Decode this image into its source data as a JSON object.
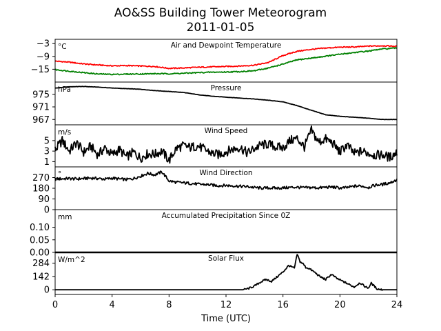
{
  "figure": {
    "title_line1": "AO&SS Building Tower Meteorogram",
    "title_line2": "2011-01-05",
    "xlabel": "Time (UTC)"
  },
  "chart_data": [
    {
      "type": "line",
      "title": "Air and Dewpoint Temperature",
      "unit": "°C",
      "ylim": [
        -21,
        -1
      ],
      "yticks": [
        -3,
        -9,
        -15
      ],
      "xlim": [
        0,
        24
      ],
      "series": [
        {
          "color": "#ff0000",
          "x": [
            0,
            1,
            2,
            3,
            4,
            5,
            6,
            7,
            8,
            9,
            10,
            11,
            12,
            13,
            14,
            15,
            16,
            17,
            18,
            19,
            20,
            21,
            22,
            23,
            24
          ],
          "y": [
            -11.2,
            -11.7,
            -12.5,
            -13.0,
            -13.4,
            -13.3,
            -13.5,
            -13.7,
            -14.6,
            -14.4,
            -14.1,
            -13.9,
            -13.7,
            -13.5,
            -13.1,
            -11.8,
            -8.6,
            -6.6,
            -5.7,
            -5.1,
            -4.7,
            -4.6,
            -4.2,
            -4.0,
            -4.3
          ]
        },
        {
          "color": "#008000",
          "x": [
            0,
            1,
            2,
            3,
            4,
            5,
            6,
            7,
            8,
            9,
            10,
            11,
            12,
            13,
            14,
            15,
            16,
            17,
            18,
            19,
            20,
            21,
            22,
            23,
            24
          ],
          "y": [
            -15.2,
            -15.9,
            -16.6,
            -17.2,
            -17.4,
            -17.3,
            -17.2,
            -17.1,
            -17.1,
            -16.9,
            -16.6,
            -16.4,
            -16.3,
            -16.1,
            -15.7,
            -14.4,
            -12.6,
            -10.6,
            -9.8,
            -8.9,
            -8.0,
            -7.2,
            -6.5,
            -5.5,
            -5.1
          ]
        }
      ]
    },
    {
      "type": "line",
      "title": "Pressure",
      "unit": "hPa",
      "ylim": [
        965.3,
        978.9
      ],
      "yticks": [
        975,
        971,
        967
      ],
      "xlim": [
        0,
        24
      ],
      "series": [
        {
          "color": "#000000",
          "x": [
            0,
            1,
            2,
            3,
            4,
            5,
            6,
            7,
            8,
            9,
            10,
            11,
            12,
            13,
            14,
            15,
            16,
            17,
            18,
            19,
            20,
            21,
            22,
            23,
            24
          ],
          "y": [
            977.0,
            977.4,
            977.5,
            977.3,
            977.0,
            976.8,
            976.6,
            976.2,
            975.9,
            975.6,
            974.9,
            974.4,
            974.1,
            973.8,
            973.5,
            973.1,
            972.6,
            971.4,
            969.9,
            968.5,
            968.0,
            967.7,
            967.4,
            967.0,
            967.0
          ]
        }
      ]
    },
    {
      "type": "line",
      "title": "Wind Speed",
      "unit": "m/s",
      "ylim": [
        0,
        8
      ],
      "yticks": [
        5,
        3,
        1
      ],
      "xlim": [
        0,
        24
      ],
      "series": [
        {
          "color": "#000000",
          "x": [
            0,
            0.5,
            1,
            1.5,
            2,
            2.5,
            3,
            3.5,
            4,
            4.5,
            5,
            5.5,
            6,
            6.5,
            7,
            7.5,
            8,
            8.5,
            9,
            9.5,
            10,
            10.5,
            11,
            11.5,
            12,
            12.5,
            13,
            13.5,
            14,
            14.5,
            15,
            15.5,
            16,
            16.5,
            17,
            17.5,
            18,
            18.5,
            19,
            19.5,
            20,
            20.5,
            21,
            21.5,
            22,
            22.5,
            23,
            23.5,
            24
          ],
          "y": [
            3.2,
            5.0,
            3.0,
            4.6,
            2.8,
            3.9,
            2.3,
            3.6,
            2.3,
            3.3,
            1.9,
            2.8,
            1.7,
            2.5,
            2.4,
            3.0,
            1.2,
            3.5,
            4.0,
            3.7,
            4.0,
            3.3,
            2.6,
            2.3,
            2.9,
            3.4,
            3.7,
            2.6,
            3.5,
            4.2,
            4.3,
            3.8,
            3.6,
            5.0,
            5.4,
            3.8,
            6.9,
            4.7,
            5.3,
            4.5,
            2.8,
            4.2,
            2.5,
            3.0,
            2.6,
            2.2,
            2.3,
            1.8,
            2.8
          ]
        }
      ]
    },
    {
      "type": "line",
      "title": "Wind Direction",
      "unit": "°",
      "ylim": [
        0,
        360
      ],
      "yticks": [
        270,
        180,
        90,
        0
      ],
      "xlim": [
        0,
        24
      ],
      "series": [
        {
          "color": "#000000",
          "x": [
            0,
            0.5,
            1,
            1.5,
            2,
            2.5,
            3,
            3.5,
            4,
            4.5,
            5,
            5.5,
            6,
            6.5,
            7,
            7.5,
            8,
            8.5,
            9,
            9.5,
            10,
            10.5,
            11,
            11.5,
            12,
            12.5,
            13,
            13.5,
            14,
            14.5,
            15,
            15.5,
            16,
            16.5,
            17,
            17.5,
            18,
            18.5,
            19,
            19.5,
            20,
            20.5,
            21,
            21.5,
            22,
            22.5,
            23,
            23.5,
            24
          ],
          "y": [
            258,
            260,
            262,
            258,
            262,
            266,
            262,
            257,
            265,
            258,
            253,
            262,
            282,
            305,
            293,
            318,
            242,
            230,
            226,
            221,
            214,
            212,
            207,
            202,
            204,
            201,
            196,
            194,
            186,
            181,
            183,
            181,
            183,
            187,
            189,
            184,
            186,
            183,
            189,
            190,
            182,
            185,
            197,
            199,
            187,
            207,
            212,
            226,
            251
          ]
        }
      ]
    },
    {
      "type": "line",
      "title": "Accumulated Precipitation Since 0Z",
      "unit": "mm",
      "ylim": [
        0,
        0.17
      ],
      "yticks": [
        0.1,
        0.05,
        0.0
      ],
      "xlim": [
        0,
        24
      ],
      "series": [
        {
          "color": "#000000",
          "x": [
            0,
            24
          ],
          "y": [
            0,
            0
          ]
        }
      ]
    },
    {
      "type": "line",
      "title": "Solar Flux",
      "unit": "W/m^2",
      "ylim": [
        -50,
        400
      ],
      "yticks": [
        284,
        142,
        0
      ],
      "xlim": [
        0,
        24
      ],
      "series": [
        {
          "color": "#000000",
          "x": [
            0,
            13.2,
            13.6,
            14.0,
            14.4,
            14.8,
            15.2,
            15.6,
            16.0,
            16.4,
            16.8,
            17.0,
            17.2,
            17.4,
            17.6,
            17.8,
            18.2,
            18.6,
            19.0,
            19.4,
            19.8,
            20.2,
            20.6,
            21.0,
            21.4,
            21.8,
            22.0,
            22.2,
            22.6,
            23.0,
            24
          ],
          "y": [
            0,
            0,
            15,
            40,
            80,
            110,
            90,
            140,
            190,
            260,
            230,
            380,
            300,
            280,
            240,
            230,
            190,
            140,
            110,
            165,
            120,
            90,
            60,
            30,
            75,
            30,
            20,
            70,
            10,
            0,
            0
          ]
        }
      ]
    }
  ]
}
